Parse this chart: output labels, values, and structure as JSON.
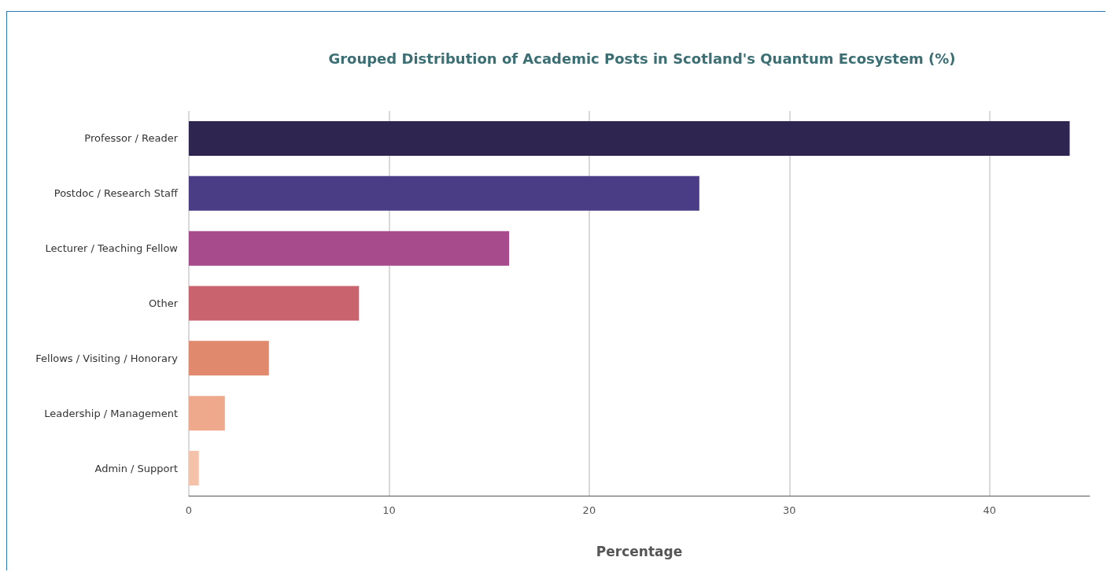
{
  "chart_data": {
    "type": "bar",
    "orientation": "horizontal",
    "title": "Grouped Distribution of Academic Posts in Scotland's Quantum Ecosystem (%)",
    "xlabel": "Percentage",
    "categories": [
      "Professor / Reader",
      "Postdoc / Research Staff",
      "Lecturer / Teaching Fellow",
      "Other",
      "Fellows / Visiting / Honorary",
      "Leadership / Management",
      "Admin / Support"
    ],
    "values": [
      44,
      25.5,
      16,
      8.5,
      4,
      1.8,
      0.5
    ],
    "colors": [
      "#2e2550",
      "#4a3d85",
      "#a84b8d",
      "#c9646f",
      "#e0896c",
      "#eea98c",
      "#f3c2a8"
    ],
    "xlim": [
      0,
      45
    ],
    "xticks": [
      0,
      10,
      20,
      30,
      40
    ],
    "grid": "x"
  }
}
